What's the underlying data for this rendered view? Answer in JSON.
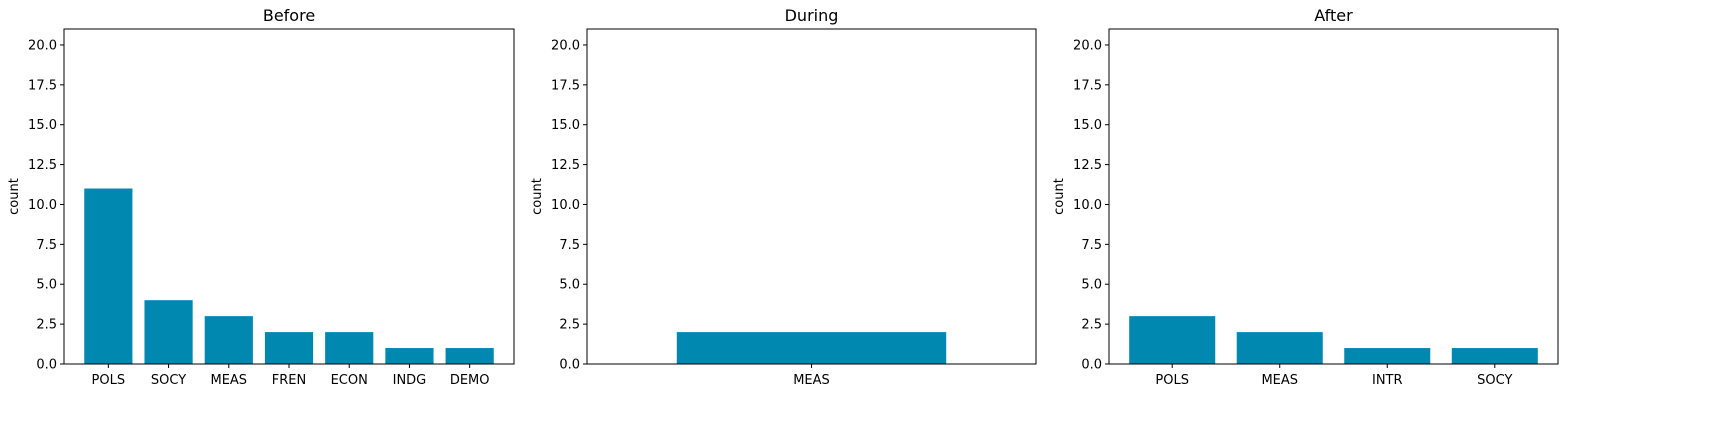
{
  "chart_data": [
    {
      "type": "bar",
      "title": "Before",
      "ylabel": "count",
      "xlabel": "",
      "ylim": [
        0,
        21
      ],
      "yticks": [
        0.0,
        2.5,
        5.0,
        7.5,
        10.0,
        12.5,
        15.0,
        17.5,
        20.0
      ],
      "categories": [
        "POLS",
        "SOCY",
        "MEAS",
        "FREN",
        "ECON",
        "INDG",
        "DEMO"
      ],
      "values": [
        11,
        4,
        3,
        2,
        2,
        1,
        1
      ],
      "color": "#0088B0"
    },
    {
      "type": "bar",
      "title": "During",
      "ylabel": "count",
      "xlabel": "",
      "ylim": [
        0,
        21
      ],
      "yticks": [
        0.0,
        2.5,
        5.0,
        7.5,
        10.0,
        12.5,
        15.0,
        17.5,
        20.0
      ],
      "categories": [
        "MEAS"
      ],
      "values": [
        2
      ],
      "color": "#0088B0"
    },
    {
      "type": "bar",
      "title": "After",
      "ylabel": "count",
      "xlabel": "",
      "ylim": [
        0,
        21
      ],
      "yticks": [
        0.0,
        2.5,
        5.0,
        7.5,
        10.0,
        12.5,
        15.0,
        17.5,
        20.0
      ],
      "categories": [
        "POLS",
        "MEAS",
        "INTR",
        "SOCY"
      ],
      "values": [
        3,
        2,
        1,
        1
      ],
      "color": "#0088B0"
    }
  ]
}
